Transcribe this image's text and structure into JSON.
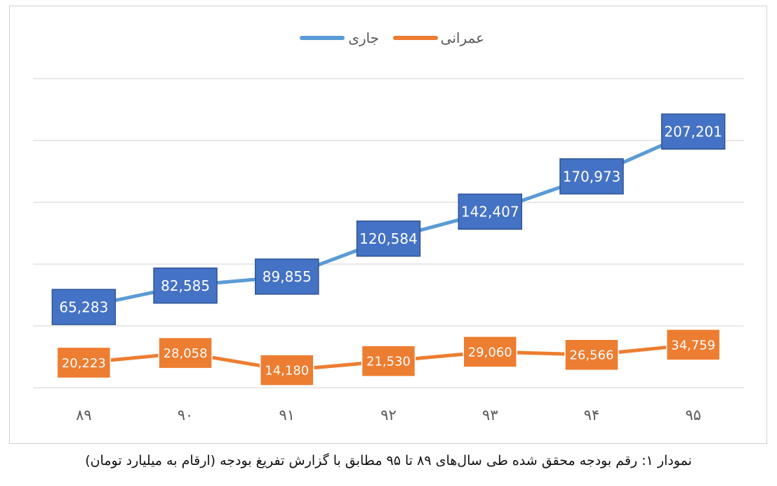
{
  "chart_data": {
    "type": "line",
    "categories": [
      "۸۹",
      "۹۰",
      "۹۱",
      "۹۲",
      "۹۳",
      "۹۴",
      "۹۵"
    ],
    "series": [
      {
        "name": "جاری",
        "color": "#5b9bd5",
        "label_bg": "#4472c4",
        "label_border": "#2f5597",
        "values": [
          65283,
          82585,
          89855,
          120584,
          142407,
          170973,
          207201
        ],
        "labels": [
          "65,283",
          "82,585",
          "89,855",
          "120,584",
          "142,407",
          "170,973",
          "207,201"
        ]
      },
      {
        "name": "عمرانی",
        "color": "#ed7d31",
        "label_bg": "#ed7d31",
        "label_border": "#ffffff",
        "values": [
          20223,
          28058,
          14180,
          21530,
          29060,
          26566,
          34759
        ],
        "labels": [
          "20,223",
          "28,058",
          "14,180",
          "21,530",
          "29,060",
          "26,566",
          "34,759"
        ]
      }
    ],
    "ylim": [
      0,
      250000
    ],
    "grid": true,
    "legend_position": "top-center",
    "y_tick_labels_shown": false
  },
  "caption": "نمودار ۱: رقم بودجه محقق شده طی سال‌های ۸۹ تا ۹۵ مطابق با گزارش تفریغ بودجه (ارقام به میلیارد تومان)"
}
